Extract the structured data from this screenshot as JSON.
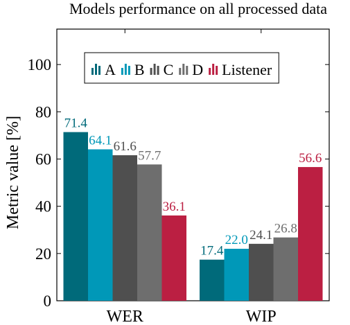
{
  "chart_data": {
    "type": "bar",
    "title": "Models performance on all processed data",
    "ylabel": "Metric value [%]",
    "xlabel": "",
    "categories": [
      "WER",
      "WIP"
    ],
    "ylim": [
      0,
      115
    ],
    "yticks": [
      0,
      20,
      40,
      60,
      80,
      100
    ],
    "grid": false,
    "legend_position": "top-center",
    "series": [
      {
        "name": "A",
        "color": "#006a7a",
        "label_color": "#006a7a",
        "values": [
          71.4,
          17.4
        ],
        "value_labels": [
          "71.4",
          "17.4"
        ]
      },
      {
        "name": "B",
        "color": "#0098b8",
        "label_color": "#0098b8",
        "values": [
          64.1,
          22.0
        ],
        "value_labels": [
          "64.1",
          "22.0"
        ]
      },
      {
        "name": "C",
        "color": "#4f4f4f",
        "label_color": "#4f4f4f",
        "values": [
          61.6,
          24.1
        ],
        "value_labels": [
          "61.6",
          "24.1"
        ]
      },
      {
        "name": "D",
        "color": "#6e6e6e",
        "label_color": "#6e6e6e",
        "values": [
          57.7,
          26.8
        ],
        "value_labels": [
          "57.7",
          "26.8"
        ]
      },
      {
        "name": "Listener",
        "color": "#bb1f42",
        "label_color": "#bb1f42",
        "values": [
          36.1,
          56.6
        ],
        "value_labels": [
          "36.1",
          "56.6"
        ]
      }
    ]
  }
}
